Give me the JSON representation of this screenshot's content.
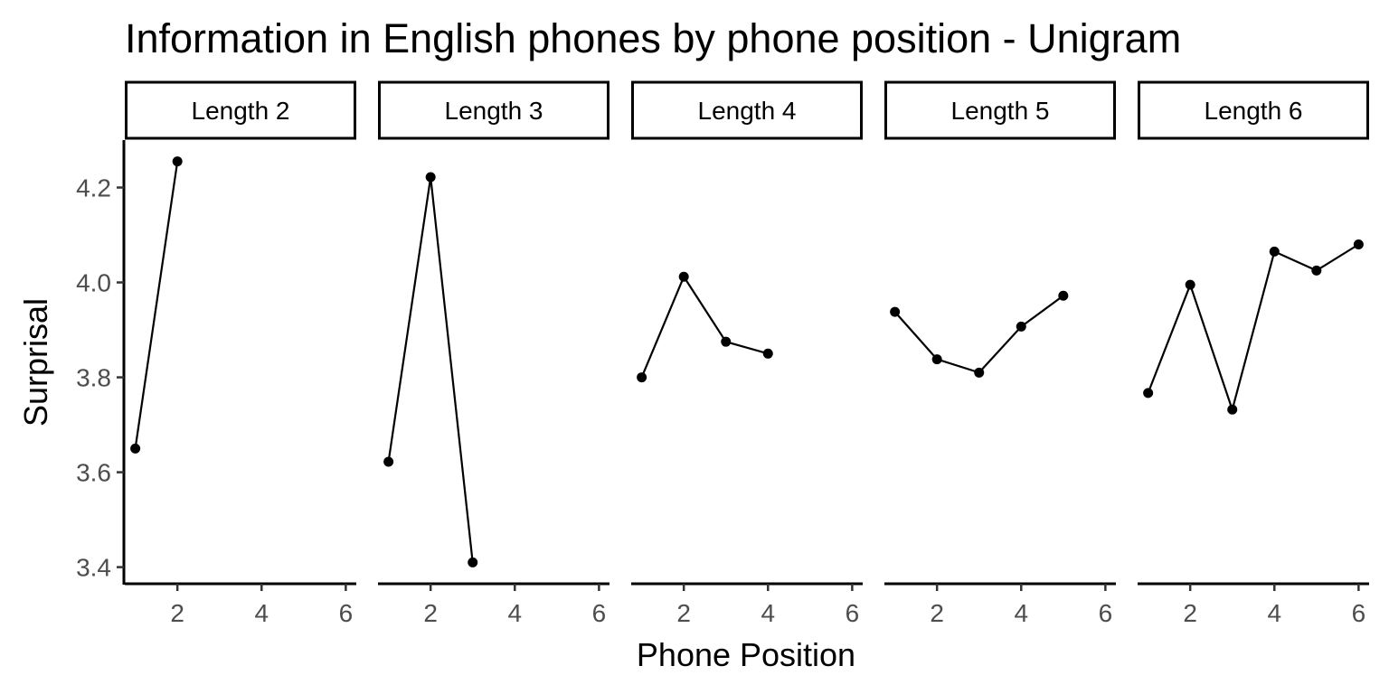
{
  "chart_data": {
    "type": "line",
    "title": "Information in English phones by phone position - Unigram",
    "xlabel": "Phone Position",
    "ylabel": "Surprisal",
    "xlim": [
      0.75,
      6.25
    ],
    "ylim": [
      3.365,
      4.3
    ],
    "x_ticks": [
      2,
      4,
      6
    ],
    "y_ticks": [
      3.4,
      3.6,
      3.8,
      4.0,
      4.2
    ],
    "y_tick_labels": [
      "3.4",
      "3.6",
      "3.8",
      "4.0",
      "4.2"
    ],
    "grid": false,
    "legend": "none",
    "line_color": "#000000",
    "point_color": "#000000",
    "facets": [
      {
        "label": "Length 2",
        "x": [
          1,
          2
        ],
        "y": [
          3.65,
          4.255
        ]
      },
      {
        "label": "Length 3",
        "x": [
          1,
          2,
          3
        ],
        "y": [
          3.622,
          4.222,
          3.41
        ]
      },
      {
        "label": "Length 4",
        "x": [
          1,
          2,
          3,
          4
        ],
        "y": [
          3.8,
          4.012,
          3.875,
          3.85
        ]
      },
      {
        "label": "Length 5",
        "x": [
          1,
          2,
          3,
          4,
          5
        ],
        "y": [
          3.938,
          3.838,
          3.81,
          3.907,
          3.972
        ]
      },
      {
        "label": "Length 6",
        "x": [
          1,
          2,
          3,
          4,
          5,
          6
        ],
        "y": [
          3.767,
          3.995,
          3.732,
          4.065,
          4.025,
          4.08
        ]
      }
    ]
  }
}
